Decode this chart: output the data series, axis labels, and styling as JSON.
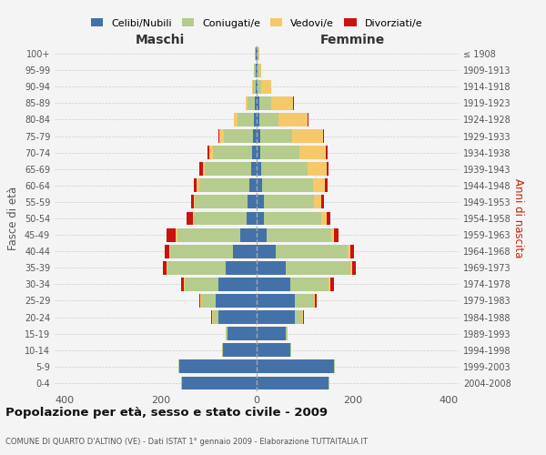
{
  "age_groups": [
    "0-4",
    "5-9",
    "10-14",
    "15-19",
    "20-24",
    "25-29",
    "30-34",
    "35-39",
    "40-44",
    "45-49",
    "50-54",
    "55-59",
    "60-64",
    "65-69",
    "70-74",
    "75-79",
    "80-84",
    "85-89",
    "90-94",
    "95-99",
    "100+"
  ],
  "birth_years": [
    "2004-2008",
    "1999-2003",
    "1994-1998",
    "1989-1993",
    "1984-1988",
    "1979-1983",
    "1974-1978",
    "1969-1973",
    "1964-1968",
    "1959-1963",
    "1954-1958",
    "1949-1953",
    "1944-1948",
    "1939-1943",
    "1934-1938",
    "1929-1933",
    "1924-1928",
    "1919-1923",
    "1914-1918",
    "1909-1913",
    "≤ 1908"
  ],
  "males": {
    "celibi": [
      155,
      160,
      70,
      60,
      80,
      85,
      80,
      65,
      50,
      35,
      20,
      18,
      15,
      12,
      10,
      8,
      5,
      3,
      2,
      2,
      2
    ],
    "coniugati": [
      2,
      2,
      2,
      5,
      10,
      30,
      70,
      120,
      130,
      130,
      110,
      110,
      105,
      95,
      80,
      60,
      35,
      15,
      5,
      3,
      2
    ],
    "vedovi": [
      0,
      0,
      0,
      0,
      2,
      2,
      2,
      2,
      2,
      3,
      3,
      3,
      5,
      5,
      8,
      10,
      8,
      5,
      2,
      0,
      0
    ],
    "divorziati": [
      0,
      0,
      0,
      0,
      2,
      3,
      5,
      8,
      10,
      20,
      12,
      5,
      5,
      8,
      5,
      2,
      0,
      0,
      0,
      0,
      0
    ]
  },
  "females": {
    "nubili": [
      150,
      160,
      70,
      60,
      80,
      80,
      70,
      60,
      40,
      20,
      15,
      15,
      12,
      10,
      8,
      8,
      5,
      5,
      2,
      2,
      2
    ],
    "coniugate": [
      2,
      2,
      2,
      5,
      15,
      40,
      80,
      135,
      150,
      135,
      120,
      105,
      105,
      95,
      80,
      65,
      40,
      25,
      8,
      3,
      2
    ],
    "vedove": [
      0,
      0,
      0,
      0,
      2,
      2,
      3,
      3,
      5,
      5,
      10,
      15,
      25,
      40,
      55,
      65,
      60,
      45,
      20,
      5,
      2
    ],
    "divorziate": [
      0,
      0,
      0,
      0,
      2,
      3,
      8,
      8,
      8,
      10,
      8,
      5,
      5,
      5,
      5,
      2,
      2,
      2,
      0,
      0,
      0
    ]
  },
  "colors": {
    "celibi_nubili": "#4472a8",
    "coniugati": "#b5cc8e",
    "vedovi": "#f5c96a",
    "divorziati": "#cc1111"
  },
  "xlim": 420,
  "title": "Popolazione per età, sesso e stato civile - 2009",
  "subtitle": "COMUNE DI QUARTO D'ALTINO (VE) - Dati ISTAT 1° gennaio 2009 - Elaborazione TUTTAITALIA.IT",
  "ylabel_left": "Fasce di età",
  "ylabel_right": "Anni di nascita",
  "xlabel_left": "Maschi",
  "xlabel_right": "Femmine",
  "bg_color": "#f4f4f4",
  "grid_color": "#cccccc"
}
